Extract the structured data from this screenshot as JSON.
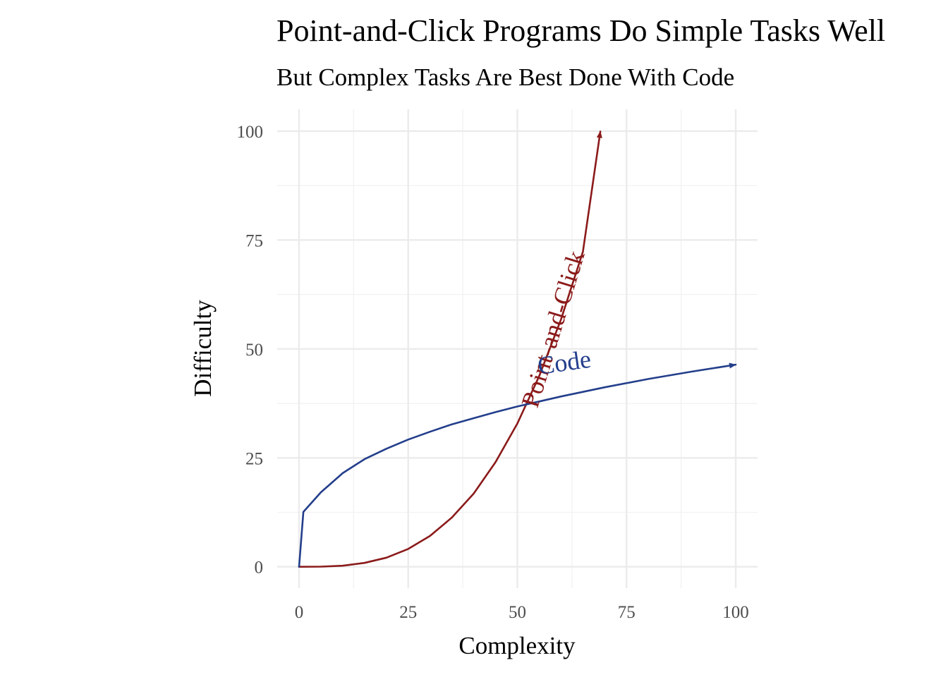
{
  "chart_data": {
    "type": "line",
    "title": "Point-and-Click Programs Do Simple Tasks Well",
    "subtitle": "But Complex Tasks Are Best Done With Code",
    "xlabel": "Complexity",
    "ylabel": "Difficulty",
    "xlim": [
      -5,
      105
    ],
    "ylim": [
      -4.9,
      105
    ],
    "x_ticks": [
      0,
      25,
      50,
      75,
      100
    ],
    "y_ticks": [
      0,
      25,
      50,
      75,
      100
    ],
    "grid": true,
    "legend": "none",
    "series": [
      {
        "name": "Point-and-Click",
        "color": "#8b1a1a",
        "arrow_end": true,
        "x": [
          0,
          5,
          10,
          15,
          20,
          25,
          30,
          35,
          40,
          45,
          50,
          55,
          60,
          65,
          69
        ],
        "y": [
          0,
          0.03,
          0.25,
          0.89,
          2.1,
          4.1,
          7.1,
          11.3,
          16.8,
          24.0,
          32.9,
          43.8,
          56.8,
          72.3,
          99.9
        ]
      },
      {
        "name": "Code",
        "color": "#233e8b",
        "arrow_end": true,
        "x": [
          0,
          1,
          5,
          10,
          15,
          20,
          25,
          30,
          35,
          40,
          45,
          50,
          60,
          70,
          80,
          90,
          100
        ],
        "y": [
          0,
          12.6,
          17.1,
          21.5,
          24.7,
          27.1,
          29.2,
          31.0,
          32.7,
          34.1,
          35.5,
          36.8,
          39.1,
          41.2,
          43.1,
          44.8,
          46.4
        ]
      }
    ],
    "annotations": [
      {
        "text": "Point-and-Click",
        "x": 60,
        "y": 54,
        "angle": -73,
        "color": "#8b1a1a"
      },
      {
        "text": "Code",
        "x": 61,
        "y": 45,
        "angle": -8,
        "color": "#233e8b"
      }
    ]
  }
}
